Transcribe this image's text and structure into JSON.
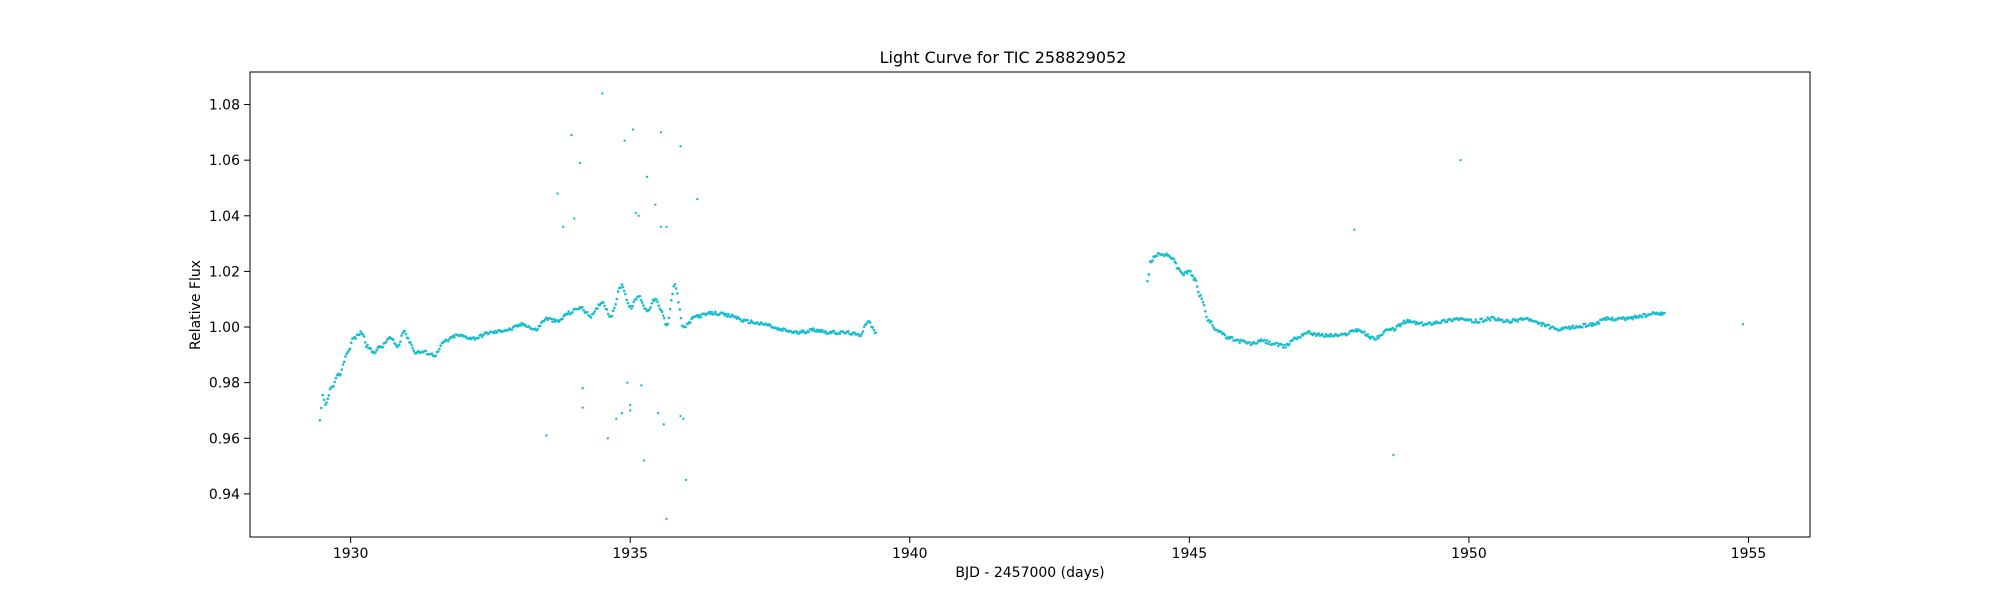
{
  "chart_data": {
    "type": "scatter",
    "title": "Light Curve for TIC 258829052",
    "xlabel": "BJD - 2457000 (days)",
    "ylabel": "Relative Flux",
    "xlim": [
      1928.2,
      1956.1
    ],
    "ylim": [
      0.9245,
      1.0917
    ],
    "xticks": [
      1930,
      1935,
      1940,
      1945,
      1950,
      1955
    ],
    "yticks": [
      0.94,
      0.96,
      0.98,
      1.0,
      1.02,
      1.04,
      1.06,
      1.08
    ],
    "grid": false,
    "color": "#17becf",
    "series": [
      {
        "x": [
          1929.45,
          1929.5,
          1929.55,
          1929.65,
          1929.8,
          1929.95,
          1930.05,
          1930.2,
          1930.3,
          1930.4,
          1930.55,
          1930.7,
          1930.85,
          1930.95,
          1931.05,
          1931.15,
          1931.3,
          1931.5,
          1931.7,
          1931.9,
          1932.2,
          1932.5,
          1932.8,
          1933.1,
          1933.3,
          1933.5,
          1933.7,
          1933.9,
          1934.1,
          1934.3,
          1934.5,
          1934.65,
          1934.85,
          1935.0,
          1935.15,
          1935.3,
          1935.45,
          1935.55,
          1935.65,
          1935.8,
          1935.95,
          1936.2,
          1936.5,
          1936.8,
          1937.1,
          1937.4,
          1937.7,
          1938.0,
          1938.3,
          1938.6,
          1938.9,
          1939.1,
          1939.25,
          1939.4
        ],
        "y": [
          0.966,
          0.975,
          0.972,
          0.978,
          0.983,
          0.991,
          0.996,
          0.998,
          0.993,
          0.991,
          0.993,
          0.996,
          0.993,
          0.999,
          0.995,
          0.991,
          0.991,
          0.99,
          0.995,
          0.997,
          0.996,
          0.998,
          0.999,
          1.001,
          0.999,
          1.003,
          1.002,
          1.005,
          1.007,
          1.004,
          1.009,
          1.004,
          1.015,
          1.007,
          1.011,
          1.006,
          1.01,
          1.006,
          1.001,
          1.015,
          1.0,
          1.004,
          1.005,
          1.004,
          1.002,
          1.001,
          0.999,
          0.998,
          0.999,
          0.998,
          0.998,
          0.997,
          1.002,
          0.998
        ]
      },
      {
        "x": [
          1944.25,
          1944.3,
          1944.4,
          1944.55,
          1944.7,
          1944.8,
          1944.9,
          1945.0,
          1945.1,
          1945.2,
          1945.35,
          1945.5,
          1945.7,
          1945.9,
          1946.1,
          1946.3,
          1946.5,
          1946.7,
          1946.9,
          1947.1,
          1947.4,
          1947.7,
          1948.0,
          1948.3,
          1948.6,
          1948.9,
          1949.2,
          1949.5,
          1949.8,
          1950.1,
          1950.4,
          1950.7,
          1951.0,
          1951.3,
          1951.6,
          1951.9,
          1952.2,
          1952.5,
          1952.8,
          1953.1,
          1953.4,
          1953.5
        ],
        "y": [
          1.016,
          1.023,
          1.026,
          1.026,
          1.025,
          1.021,
          1.019,
          1.02,
          1.017,
          1.011,
          1.002,
          0.999,
          0.996,
          0.995,
          0.994,
          0.995,
          0.994,
          0.993,
          0.996,
          0.998,
          0.997,
          0.997,
          0.999,
          0.996,
          0.999,
          1.002,
          1.001,
          1.002,
          1.003,
          1.002,
          1.003,
          1.002,
          1.003,
          1.001,
          0.999,
          1.0,
          1.001,
          1.003,
          1.003,
          1.004,
          1.005,
          1.005
        ]
      },
      {
        "x": [
          1933.5,
          1933.7,
          1933.8,
          1933.95,
          1934.0,
          1934.1,
          1934.15,
          1934.5,
          1934.6,
          1934.75,
          1934.85,
          1934.9,
          1935.0,
          1935.05,
          1935.1,
          1935.15,
          1935.25,
          1935.3,
          1935.45,
          1935.5,
          1935.55,
          1935.6,
          1935.65,
          1935.9,
          1935.95,
          1936.0,
          1936.2,
          1935.0,
          1934.95,
          1934.15,
          1947.95,
          1948.65,
          1949.85,
          1954.9,
          1935.65,
          1935.55,
          1935.2,
          1935.9
        ],
        "y": [
          0.961,
          1.048,
          1.036,
          1.069,
          1.039,
          1.059,
          0.971,
          1.084,
          0.96,
          0.967,
          0.969,
          1.067,
          0.97,
          1.071,
          1.041,
          1.04,
          0.952,
          1.054,
          1.044,
          0.969,
          1.07,
          0.965,
          1.036,
          1.065,
          0.967,
          0.945,
          1.046,
          0.972,
          0.98,
          0.978,
          1.035,
          0.954,
          1.06,
          1.001,
          0.931,
          1.036,
          0.979,
          0.968
        ]
      }
    ]
  }
}
